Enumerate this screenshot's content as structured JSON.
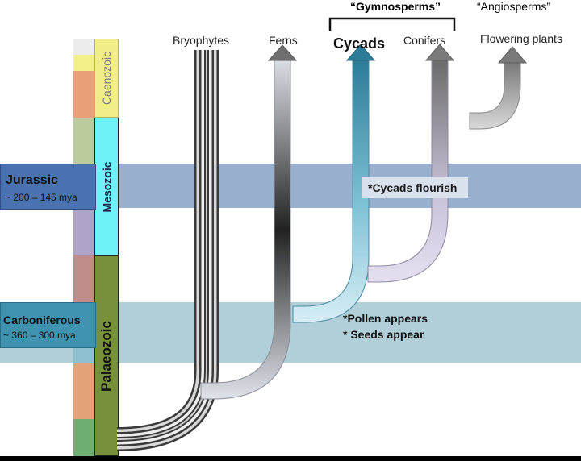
{
  "group_labels": {
    "gymnosperms": "“Gymnosperms”",
    "angiosperms": "“Angiosperms”"
  },
  "lineages": {
    "bryophytes": "Bryophytes",
    "ferns": "Ferns",
    "cycads": "Cycads",
    "conifers": "Conifers",
    "flowering": "Flowering plants"
  },
  "eras": {
    "caenozoic": "Caenozoic",
    "mesozoic": "Mesozoic",
    "palaeozoic": "Palaeozoic"
  },
  "periods": {
    "jurassic": {
      "name": "Jurassic",
      "range": "~ 200 – 145 mya"
    },
    "carboniferous": {
      "name": "Carboniferous",
      "range": "~ 360 – 300 mya"
    }
  },
  "events": {
    "cycads_flourish": "*Cycads flourish",
    "pollen": "*Pollen appears",
    "seeds": "* Seeds appear"
  },
  "colors": {
    "jurassic_band": "#8fa9c9",
    "carboniferous_band": "#a9cbd6",
    "jurassic_box": "#4a72b0",
    "carboniferous_box": "#3f92b0",
    "caenozoic": "#f1ee8a",
    "mesozoic": "#6ff2f7",
    "palaeozoic": "#76913a"
  }
}
